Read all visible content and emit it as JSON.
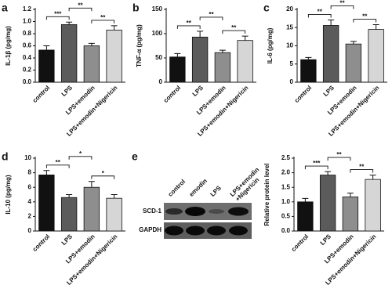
{
  "chart_data": [
    {
      "type": "bar",
      "label": "a",
      "ylabel": "IL-1β (pg/mg)",
      "categories": [
        "control",
        "LPS",
        "LPS+emodin",
        "LPS+emodin+Nigericin"
      ],
      "values": [
        0.53,
        0.95,
        0.6,
        0.86
      ],
      "errors": [
        0.07,
        0.04,
        0.04,
        0.07
      ],
      "colors": [
        "#111111",
        "#5b5b5b",
        "#8e8e8e",
        "#d6d6d6"
      ],
      "ylim": [
        0,
        1.2
      ],
      "yticks": [
        {
          "value": 0,
          "label": "0.0"
        },
        0.2,
        0.4,
        0.6,
        0.8,
        {
          "value": 1,
          "label": "1.0"
        },
        1.2
      ],
      "significance": [
        "***",
        "**",
        "**"
      ]
    },
    {
      "type": "bar",
      "label": "b",
      "ylabel": "TNF-α (pg/mg)",
      "categories": [
        "control",
        "LPS",
        "LPS+emodin",
        "LPS+emodin+Nigericin"
      ],
      "values": [
        52,
        93,
        61,
        86
      ],
      "errors": [
        7,
        12,
        5,
        9
      ],
      "colors": [
        "#111111",
        "#5b5b5b",
        "#8e8e8e",
        "#d6d6d6"
      ],
      "ylim": [
        0,
        150
      ],
      "yticks": [
        0,
        50,
        100,
        150
      ],
      "significance": [
        "**",
        "**",
        "**"
      ]
    },
    {
      "type": "bar",
      "label": "c",
      "ylabel": "IL-6 (pg/mg)",
      "categories": [
        "control",
        "LPS",
        "LPS+emodin",
        "LPS+emodin+Nigericin"
      ],
      "values": [
        6.2,
        15.6,
        10.5,
        14.5
      ],
      "errors": [
        0.6,
        1.5,
        0.7,
        1.3
      ],
      "colors": [
        "#111111",
        "#5b5b5b",
        "#8e8e8e",
        "#d6d6d6"
      ],
      "ylim": [
        0,
        20
      ],
      "yticks": [
        0,
        5,
        10,
        15,
        20
      ],
      "significance": [
        "**",
        "**",
        "**"
      ]
    },
    {
      "type": "bar",
      "label": "d",
      "ylabel": "IL-10 (pg/mg)",
      "categories": [
        "control",
        "LPS",
        "LPS+emodin",
        "LPS+emodin+Nigericin"
      ],
      "values": [
        7.7,
        4.6,
        6.0,
        4.5
      ],
      "errors": [
        0.6,
        0.4,
        0.8,
        0.5
      ],
      "colors": [
        "#111111",
        "#5b5b5b",
        "#8e8e8e",
        "#d6d6d6"
      ],
      "ylim": [
        0,
        10
      ],
      "yticks": [
        0,
        2,
        4,
        6,
        8,
        10
      ],
      "significance": [
        "**",
        "*",
        "*"
      ]
    },
    {
      "type": "bar",
      "ylabel": "Relative protein level",
      "categories": [
        "control",
        "LPS",
        "LPS+emodin",
        "LPS+emodin+Nigericin"
      ],
      "values": [
        1.0,
        1.92,
        1.17,
        1.77
      ],
      "errors": [
        0.12,
        0.12,
        0.13,
        0.15
      ],
      "colors": [
        "#111111",
        "#5b5b5b",
        "#8e8e8e",
        "#d6d6d6"
      ],
      "ylim": [
        0,
        2.5
      ],
      "yticks": [
        {
          "value": 0,
          "label": "0.0"
        },
        0.5,
        {
          "value": 1,
          "label": "1.0"
        },
        1.5,
        {
          "value": 2,
          "label": "2.0"
        },
        2.5
      ],
      "significance": [
        "***",
        "**",
        "**"
      ]
    }
  ],
  "blot": {
    "label": "e",
    "column_lines": [
      [
        "control"
      ],
      [
        "emodin"
      ],
      [
        "LPS"
      ],
      [
        "LPS+emodin",
        "+Nigericin"
      ]
    ],
    "rows": [
      "SCD-1",
      "GAPDH"
    ]
  }
}
